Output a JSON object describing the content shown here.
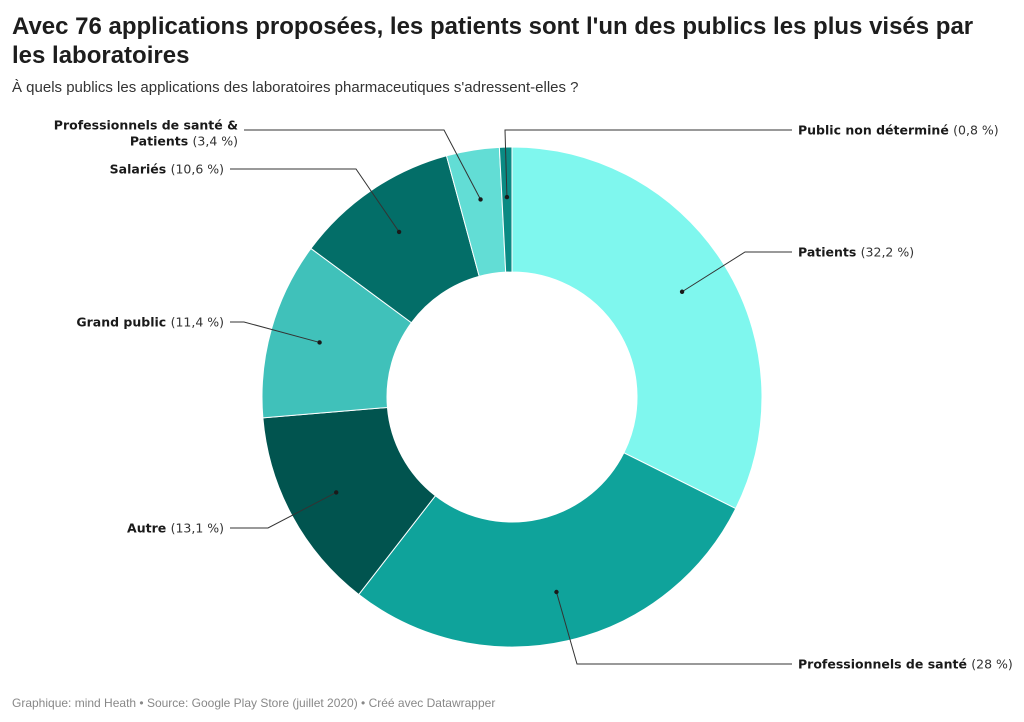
{
  "header": {
    "title": "Avec 76 applications proposées, les patients sont l'un des publics les plus visés par les laboratoires",
    "subtitle": "À quels publics les applications des laboratoires pharmaceutiques s'adressent-elles ?"
  },
  "footer": {
    "credit": "Graphique: mind Heath • Source: Google Play Store (juillet 2020) • Créé avec Datawrapper"
  },
  "chart_data": {
    "type": "pie",
    "donut": true,
    "unit": "%",
    "slices": [
      {
        "name": "Patients",
        "value": 32.2,
        "value_label": "(32,2 %)",
        "color": "#7ff7ee"
      },
      {
        "name": "Professionnels de santé",
        "value": 28,
        "value_label": "(28 %)",
        "color": "#0fa39b"
      },
      {
        "name": "Autre",
        "value": 13.1,
        "value_label": "(13,1 %)",
        "color": "#01544f"
      },
      {
        "name": "Grand public",
        "value": 11.4,
        "value_label": "(11,4 %)",
        "color": "#40c1ba"
      },
      {
        "name": "Salariés",
        "value": 10.6,
        "value_label": "(10,6 %)",
        "color": "#036e68"
      },
      {
        "name": "Professionnels de santé & Patients",
        "value": 3.4,
        "value_label": "(3,4 %)",
        "color": "#62ddd5"
      },
      {
        "name": "Public non déterminé",
        "value": 0.8,
        "value_label": "(0,8 %)",
        "color": "#0a8a83"
      }
    ]
  }
}
